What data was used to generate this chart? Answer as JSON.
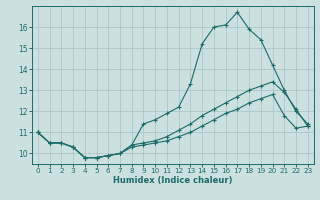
{
  "xlabel": "Humidex (Indice chaleur)",
  "xlim": [
    -0.5,
    23.5
  ],
  "ylim": [
    9.5,
    17.0
  ],
  "yticks": [
    10,
    11,
    12,
    13,
    14,
    15,
    16
  ],
  "xticks": [
    0,
    1,
    2,
    3,
    4,
    5,
    6,
    7,
    8,
    9,
    10,
    11,
    12,
    13,
    14,
    15,
    16,
    17,
    18,
    19,
    20,
    21,
    22,
    23
  ],
  "bg_color": "#cde0e0",
  "grid_color": "#aac8c8",
  "line_color": "#1a6b6b",
  "line1_x": [
    0,
    1,
    2,
    3,
    4,
    5,
    6,
    7,
    8,
    9,
    10,
    11,
    12,
    13,
    14,
    15,
    16,
    17,
    18,
    19,
    20,
    21,
    22,
    23
  ],
  "line1_y": [
    11.0,
    10.5,
    10.5,
    10.3,
    9.8,
    9.8,
    9.9,
    10.0,
    10.4,
    11.4,
    11.6,
    11.9,
    12.2,
    13.3,
    15.2,
    16.0,
    16.1,
    16.7,
    15.9,
    15.4,
    14.2,
    13.0,
    12.0,
    11.4
  ],
  "line2_x": [
    0,
    1,
    2,
    3,
    4,
    5,
    6,
    7,
    8,
    9,
    10,
    11,
    12,
    13,
    14,
    15,
    16,
    17,
    18,
    19,
    20,
    21,
    22,
    23
  ],
  "line2_y": [
    11.0,
    10.5,
    10.5,
    10.3,
    9.8,
    9.8,
    9.9,
    10.0,
    10.3,
    10.4,
    10.5,
    10.6,
    10.8,
    11.0,
    11.3,
    11.6,
    11.9,
    12.1,
    12.4,
    12.6,
    12.8,
    11.8,
    11.2,
    11.3
  ],
  "line3_x": [
    0,
    1,
    2,
    3,
    4,
    5,
    6,
    7,
    8,
    9,
    10,
    11,
    12,
    13,
    14,
    15,
    16,
    17,
    18,
    19,
    20,
    21,
    22,
    23
  ],
  "line3_y": [
    11.0,
    10.5,
    10.5,
    10.3,
    9.8,
    9.8,
    9.9,
    10.0,
    10.4,
    10.5,
    10.6,
    10.8,
    11.1,
    11.4,
    11.8,
    12.1,
    12.4,
    12.7,
    13.0,
    13.2,
    13.4,
    12.9,
    12.1,
    11.3
  ]
}
